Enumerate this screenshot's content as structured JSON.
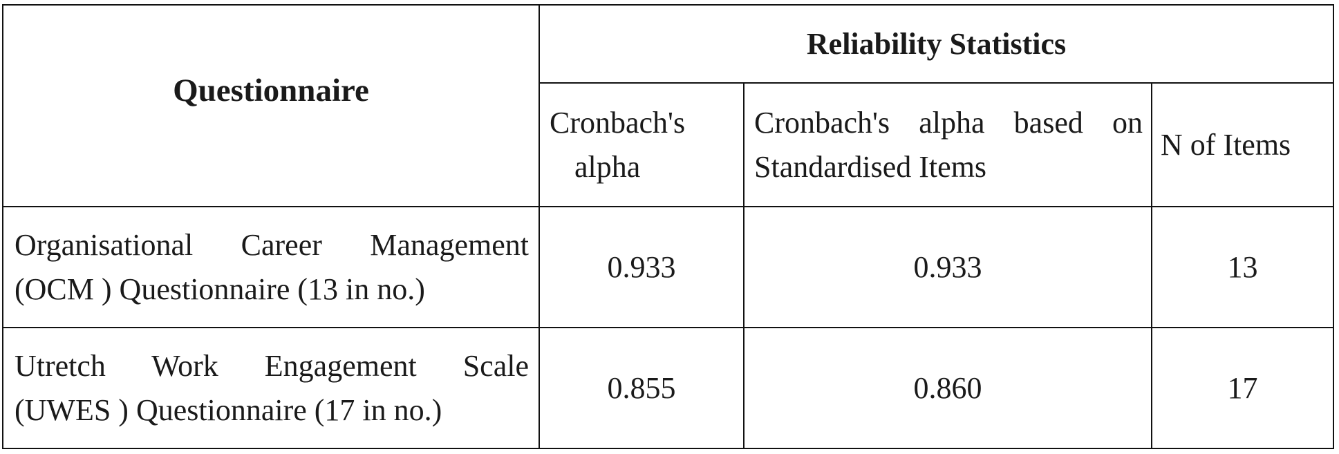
{
  "table": {
    "header": {
      "questionnaire": "Questionnaire",
      "group": "Reliability Statistics",
      "col_alpha_line1": "Cronbach's",
      "col_alpha_line2": "alpha",
      "col_alpha_std": "Cronbach's alpha based on Standardised Items",
      "col_n_items": "N of Items"
    },
    "rows": [
      {
        "name_line1": "Organisational Career Management",
        "name_line2": "(OCM ) Questionnaire (13 in no.)",
        "alpha": "0.933",
        "alpha_std": "0.933",
        "n_items": "13"
      },
      {
        "name_line1": "Utretch Work Engagement Scale",
        "name_line2": "(UWES ) Questionnaire (17 in no.)",
        "alpha": "0.855",
        "alpha_std": "0.860",
        "n_items": "17"
      }
    ]
  }
}
